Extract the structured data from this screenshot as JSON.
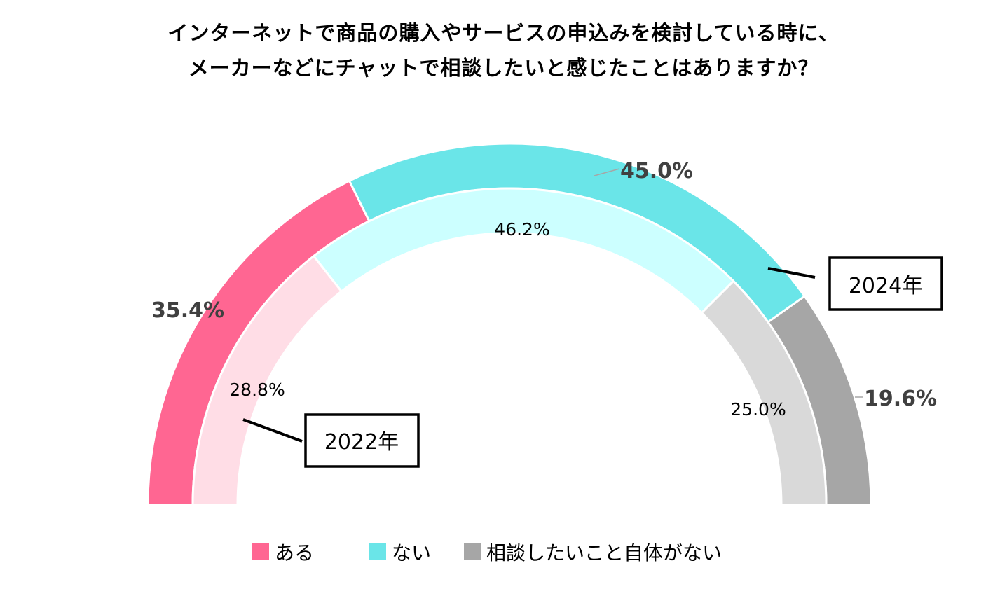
{
  "chart_data": {
    "type": "donut-half",
    "title_lines": [
      "インターネットで商品の購入やサービスの申込みを検討している時に、",
      "メーカーなどにチャットで相談したいと感じたことはありますか？"
    ],
    "categories": [
      "ある",
      "ない",
      "相談したいこと自体がない"
    ],
    "series": [
      {
        "name": "2024年",
        "values": [
          35.4,
          45.0,
          19.6
        ],
        "labels": [
          "35.4%",
          "45.0%",
          "19.6%"
        ]
      },
      {
        "name": "2022年",
        "values": [
          28.8,
          46.2,
          25.0
        ],
        "labels": [
          "28.8%",
          "46.2%",
          "25.0%"
        ]
      }
    ],
    "colors": {
      "outer": [
        "#ff6692",
        "#6ae5e8",
        "#a6a6a6"
      ],
      "inner": [
        "#ffdde6",
        "#ccffff",
        "#d9d9d9"
      ],
      "legend": [
        "#ff6692",
        "#6ae5e8",
        "#a6a6a6"
      ]
    }
  },
  "legend": [
    {
      "label": "ある"
    },
    {
      "label": "ない"
    },
    {
      "label": "相談したいこと自体がない"
    }
  ]
}
